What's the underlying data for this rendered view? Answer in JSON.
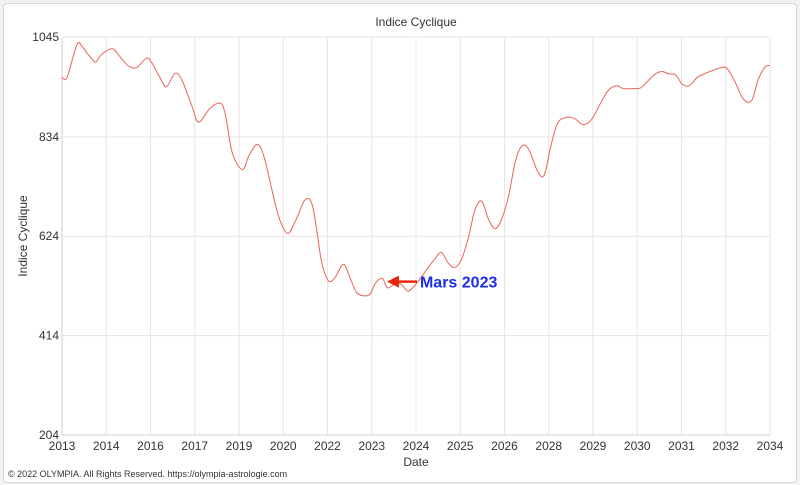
{
  "chart_data": {
    "type": "line",
    "title": "Indice Cyclique",
    "xlabel": "Date",
    "ylabel": "Indice Cyclique",
    "xlim": [
      2013,
      2034
    ],
    "ylim": [
      204,
      1045
    ],
    "x_tick_labels": [
      "2013",
      "2014",
      "2016",
      "2017",
      "2019",
      "2020",
      "2022",
      "2023",
      "2024",
      "2025",
      "2026",
      "2028",
      "2029",
      "2030",
      "2031",
      "2032",
      "2034"
    ],
    "y_ticks": [
      204,
      414,
      624,
      834,
      1045
    ],
    "grid": true,
    "series": [
      {
        "color": "#e8655a",
        "x": [
          2013.0,
          2013.1,
          2013.2,
          2013.45,
          2013.6,
          2013.75,
          2013.9,
          2014.0,
          2014.2,
          2014.5,
          2014.7,
          2014.95,
          2015.2,
          2015.5,
          2015.65,
          2015.9,
          2016.1,
          2016.35,
          2016.55,
          2016.85,
          2017.05,
          2017.4,
          2017.7,
          2017.85,
          2018.05,
          2018.35,
          2018.55,
          2018.8,
          2019.0,
          2019.25,
          2019.45,
          2019.7,
          2019.95,
          2020.2,
          2020.4,
          2020.55,
          2020.7,
          2020.9,
          2021.1,
          2021.35,
          2021.55,
          2021.75,
          2022.0,
          2022.15,
          2022.3,
          2022.5,
          2022.65,
          2022.85,
          2023.05,
          2023.25,
          2023.4,
          2023.6,
          2023.85,
          2024.05,
          2024.25,
          2024.45,
          2024.65,
          2024.85,
          2025.05,
          2025.25,
          2025.45,
          2025.65,
          2025.85,
          2026.05,
          2026.25,
          2026.45,
          2026.65,
          2026.85,
          2027.1,
          2027.3,
          2027.5,
          2027.7,
          2027.95,
          2028.2,
          2028.45,
          2028.7,
          2028.95,
          2029.2,
          2029.45,
          2029.65,
          2029.9,
          2030.15,
          2030.35,
          2030.6,
          2030.8,
          2031.0,
          2031.2,
          2031.4,
          2031.6,
          2031.85,
          2032.05,
          2032.25,
          2032.45,
          2032.7,
          2032.95,
          2033.2,
          2033.45,
          2033.65,
          2033.85,
          2034.0
        ],
        "y": [
          960,
          955,
          970,
          1030,
          1025,
          1010,
          998,
          992,
          1010,
          1020,
          1005,
          985,
          980,
          1000,
          992,
          960,
          940,
          968,
          955,
          900,
          865,
          895,
          905,
          880,
          800,
          765,
          795,
          818,
          790,
          715,
          660,
          630,
          660,
          700,
          695,
          640,
          570,
          530,
          537,
          565,
          535,
          504,
          498,
          503,
          525,
          535,
          515,
          522,
          523,
          508,
          515,
          532,
          557,
          575,
          590,
          568,
          558,
          575,
          620,
          680,
          698,
          660,
          640,
          662,
          710,
          783,
          815,
          807,
          762,
          753,
          815,
          863,
          875,
          873,
          860,
          870,
          902,
          932,
          942,
          936,
          936,
          937,
          950,
          967,
          972,
          967,
          965,
          945,
          942,
          960,
          967,
          973,
          978,
          980,
          952,
          915,
          910,
          955,
          981,
          985
        ]
      }
    ],
    "annotation": {
      "text": "Mars 2023",
      "x": 2022.55,
      "y": 528,
      "color": "#1a2fe6",
      "arrow_color": "#e8260f"
    }
  },
  "footer": {
    "copyright": "© 2022 OLYMPIA. All Rights Reserved. https://olympia-astrologie.com"
  }
}
